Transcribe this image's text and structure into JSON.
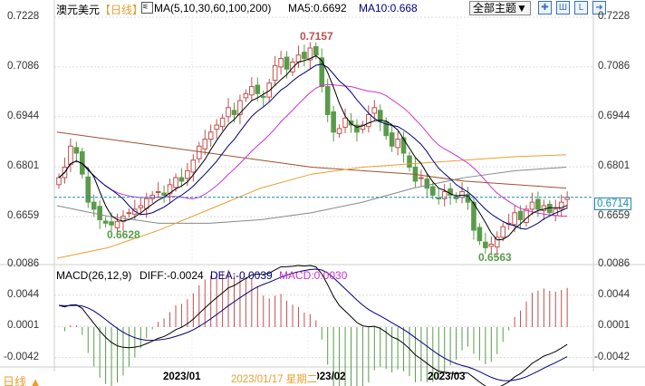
{
  "header": {
    "symbol": "澳元美元",
    "period": "【日线】",
    "ma_label": "MA(5,10,30,60,100,200)",
    "ma5": "MA5:0.6692",
    "ma10": "MA10:0.668",
    "theme_button": "全部主题▼",
    "tool_icons": [
      "crosshair-icon",
      "bar-layout-icon",
      "indicator-icon",
      "exit-icon"
    ]
  },
  "price_axis": [
    "0.7228",
    "0.7086",
    "0.6944",
    "0.6801",
    "0.6659"
  ],
  "current_price": "0.6714",
  "annotations": {
    "high": "0.7157",
    "low1": "0.6628",
    "low2": "0.6563"
  },
  "macd": {
    "label": "MACD(26,12,9)",
    "diff": "DIFF:-0.0024",
    "dea": "DEA:-0.0039",
    "macd": "MACD:0.0030",
    "axis": [
      "0.0086",
      "0.0044",
      "0.0001",
      "-0.0042"
    ]
  },
  "footer": {
    "period_button": "日线 ▲",
    "dates": [
      "2023/01",
      "2023/02",
      "2023/03"
    ],
    "crosshair_date": "2023/01/17 星期二"
  },
  "colors": {
    "up": "#c0504d",
    "down": "#5a9b4a",
    "ma5": "#000000",
    "ma10": "#000080",
    "ma30": "#cc33cc",
    "ma60": "#e8a030",
    "ma100": "#888888",
    "ma200": "#a0522d",
    "current": "#1a8ab0"
  },
  "chart_data": {
    "type": "candlestick",
    "ylim": [
      0.6563,
      0.7228
    ],
    "closes": [
      0.677,
      0.68,
      0.686,
      0.684,
      0.678,
      0.67,
      0.668,
      0.665,
      0.664,
      0.6635,
      0.6645,
      0.666,
      0.667,
      0.668,
      0.669,
      0.671,
      0.672,
      0.673,
      0.672,
      0.675,
      0.677,
      0.676,
      0.679,
      0.682,
      0.686,
      0.688,
      0.69,
      0.692,
      0.694,
      0.697,
      0.695,
      0.699,
      0.701,
      0.703,
      0.701,
      0.7,
      0.704,
      0.709,
      0.711,
      0.708,
      0.71,
      0.712,
      0.711,
      0.714,
      0.712,
      0.703,
      0.695,
      0.69,
      0.691,
      0.694,
      0.692,
      0.69,
      0.692,
      0.695,
      0.697,
      0.693,
      0.689,
      0.686,
      0.688,
      0.684,
      0.68,
      0.676,
      0.677,
      0.674,
      0.672,
      0.671,
      0.673,
      0.672,
      0.671,
      0.673,
      0.67,
      0.662,
      0.659,
      0.657,
      0.658,
      0.66,
      0.663,
      0.664,
      0.667,
      0.665,
      0.668,
      0.67,
      0.668,
      0.669,
      0.667,
      0.668,
      0.67,
      0.6714
    ],
    "ma60": [
      0.654,
      0.657,
      0.662,
      0.668,
      0.674,
      0.678,
      0.68,
      0.681,
      0.682,
      0.683,
      0.6835
    ],
    "ma100": [
      0.669,
      0.666,
      0.664,
      0.664,
      0.665,
      0.667,
      0.67,
      0.674,
      0.677,
      0.679,
      0.68
    ],
    "ma200": [
      0.69,
      0.688,
      0.686,
      0.684,
      0.682,
      0.68,
      0.679,
      0.678,
      0.676,
      0.675,
      0.674
    ]
  }
}
